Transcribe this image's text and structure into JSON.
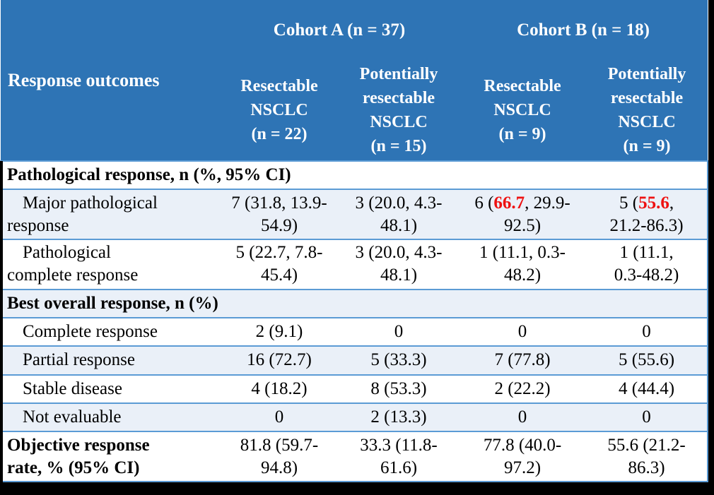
{
  "colors": {
    "frame_bg": "#000000",
    "header_bg": "#2e74b5",
    "header_text": "#ffffff",
    "shaded_row": "#eaf0f8",
    "row_bg": "#ffffff",
    "border_blue": "#5b9bd5",
    "text": "#000000",
    "highlight": "#ee1111"
  },
  "table": {
    "corner_label": "Response outcomes",
    "cohort_groups": [
      {
        "label": "Cohort A (n = 37)"
      },
      {
        "label": "Cohort B (n = 18)"
      }
    ],
    "subheaders": [
      "Resectable\nNSCLC\n(n = 22)",
      "Potentially\nresectable\nNSCLC\n(n = 15)",
      "Resectable\nNSCLC\n(n = 9)",
      "Potentially\nresectable\nNSCLC\n(n = 9)"
    ],
    "rows": [
      {
        "type": "section",
        "label": "Pathological response, n (%, 95% CI)",
        "shaded": false
      },
      {
        "type": "data",
        "label": "Major pathological\nresponse",
        "shaded": true,
        "indent": true,
        "bold": false,
        "values": [
          "7 (31.8, 13.9-\n54.9)",
          "3 (20.0, 4.3-\n48.1)",
          {
            "pre": "6 (",
            "red": "66.7",
            "post": ", 29.9-\n92.5)"
          },
          {
            "pre": "5 (",
            "red": "55.6",
            "post": ",\n21.2-86.3)"
          }
        ]
      },
      {
        "type": "data",
        "label": "Pathological\ncomplete response",
        "shaded": false,
        "indent": true,
        "bold": false,
        "values": [
          "5 (22.7, 7.8-\n45.4)",
          "3 (20.0, 4.3-\n48.1)",
          "1 (11.1, 0.3-\n48.2)",
          "1 (11.1,\n0.3-48.2)"
        ]
      },
      {
        "type": "section",
        "label": "Best overall response, n (%)",
        "shaded": true
      },
      {
        "type": "data",
        "label": "Complete response",
        "shaded": false,
        "indent": true,
        "bold": false,
        "values": [
          "2 (9.1)",
          "0",
          "0",
          "0"
        ]
      },
      {
        "type": "data",
        "label": "Partial response",
        "shaded": true,
        "indent": true,
        "bold": false,
        "values": [
          "16 (72.7)",
          "5 (33.3)",
          "7 (77.8)",
          "5 (55.6)"
        ]
      },
      {
        "type": "data",
        "label": "Stable disease",
        "shaded": false,
        "indent": true,
        "bold": false,
        "values": [
          "4 (18.2)",
          "8 (53.3)",
          "2 (22.2)",
          "4 (44.4)"
        ]
      },
      {
        "type": "data",
        "label": "Not evaluable",
        "shaded": true,
        "indent": true,
        "bold": false,
        "values": [
          "0",
          "2 (13.3)",
          "0",
          "0"
        ]
      },
      {
        "type": "data",
        "label": "Objective response\nrate, % (95% CI)",
        "shaded": false,
        "indent": false,
        "bold": true,
        "values": [
          "81.8 (59.7-\n94.8)",
          "33.3 (11.8-\n61.6)",
          "77.8 (40.0-\n97.2)",
          "55.6 (21.2-\n86.3)"
        ]
      }
    ]
  }
}
